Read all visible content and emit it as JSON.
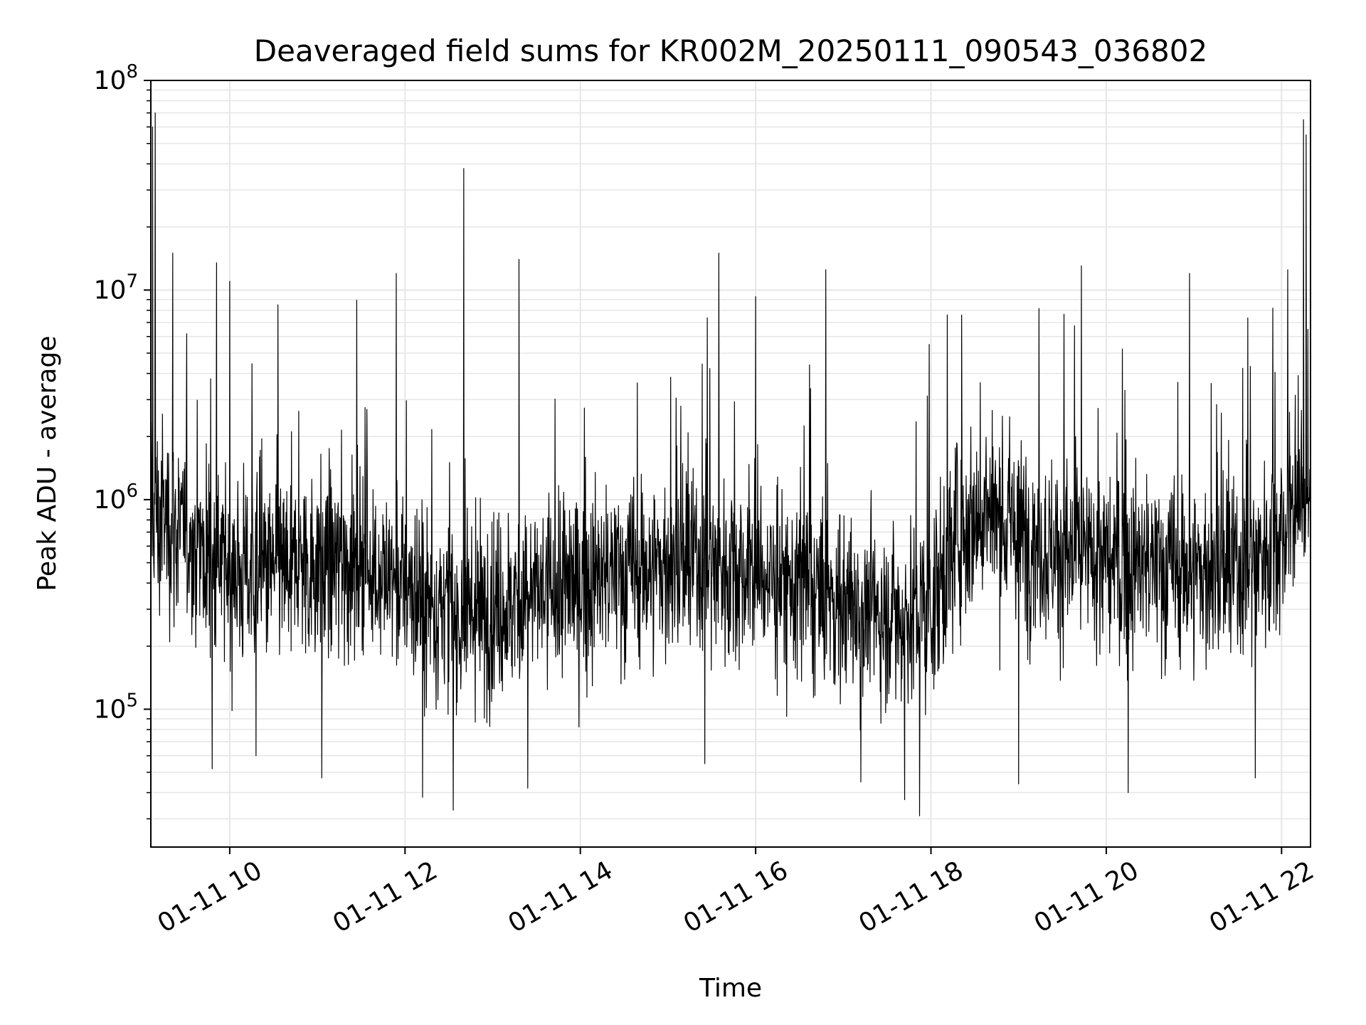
{
  "chart_data": {
    "type": "line",
    "title": "Deaveraged field sums for KR002M_20250111_090543_036802",
    "xlabel": "Time",
    "ylabel": "Peak ADU - average",
    "xlim_hours": [
      9.1,
      22.33
    ],
    "ylim": [
      22000,
      100000000
    ],
    "yscale": "log",
    "grid": true,
    "line_color": "#000000",
    "grid_color": "#e6e6e6",
    "x_ticks": [
      {
        "hour": 10,
        "label": "01-11 10"
      },
      {
        "hour": 12,
        "label": "01-11 12"
      },
      {
        "hour": 14,
        "label": "01-11 14"
      },
      {
        "hour": 16,
        "label": "01-11 16"
      },
      {
        "hour": 18,
        "label": "01-11 18"
      },
      {
        "hour": 20,
        "label": "01-11 20"
      },
      {
        "hour": 22,
        "label": "01-11 22"
      }
    ],
    "y_ticks": [
      {
        "value": 100000,
        "base": "10",
        "exp": "5"
      },
      {
        "value": 1000000,
        "base": "10",
        "exp": "6"
      },
      {
        "value": 10000000,
        "base": "10",
        "exp": "7"
      },
      {
        "value": 100000000,
        "base": "10",
        "exp": "8"
      }
    ],
    "series": [
      {
        "name": "Peak ADU - average",
        "baseline_profile": {
          "hours": [
            9.1,
            9.3,
            9.6,
            10.0,
            10.5,
            11.0,
            11.5,
            12.0,
            12.5,
            13.0,
            13.5,
            14.0,
            14.5,
            15.0,
            15.5,
            16.0,
            16.5,
            17.0,
            17.5,
            18.0,
            18.3,
            18.6,
            19.0,
            19.5,
            20.0,
            20.5,
            21.0,
            21.5,
            22.0,
            22.33
          ],
          "median": [
            900000,
            800000,
            600000,
            450000,
            450000,
            500000,
            500000,
            380000,
            280000,
            300000,
            350000,
            400000,
            450000,
            480000,
            500000,
            450000,
            380000,
            320000,
            280000,
            300000,
            700000,
            900000,
            700000,
            550000,
            500000,
            480000,
            450000,
            450000,
            700000,
            1200000
          ]
        },
        "highlights": [
          {
            "hour": 9.12,
            "value": 60000000
          },
          {
            "hour": 9.15,
            "value": 70000000
          },
          {
            "hour": 9.2,
            "value": 280000
          },
          {
            "hour": 9.35,
            "value": 15000000
          },
          {
            "hour": 9.8,
            "value": 52000
          },
          {
            "hour": 9.85,
            "value": 13500000
          },
          {
            "hour": 10.0,
            "value": 11000000
          },
          {
            "hour": 10.3,
            "value": 60000
          },
          {
            "hour": 10.55,
            "value": 8500000
          },
          {
            "hour": 11.05,
            "value": 47000
          },
          {
            "hour": 11.9,
            "value": 12000000
          },
          {
            "hour": 12.2,
            "value": 38000
          },
          {
            "hour": 12.55,
            "value": 33000
          },
          {
            "hour": 12.67,
            "value": 38000000
          },
          {
            "hour": 13.3,
            "value": 14000000
          },
          {
            "hour": 13.4,
            "value": 42000
          },
          {
            "hour": 15.42,
            "value": 55000
          },
          {
            "hour": 15.58,
            "value": 15000000
          },
          {
            "hour": 16.0,
            "value": 9300000
          },
          {
            "hour": 16.8,
            "value": 12500000
          },
          {
            "hour": 17.2,
            "value": 45000
          },
          {
            "hour": 17.7,
            "value": 37000
          },
          {
            "hour": 17.87,
            "value": 31000
          },
          {
            "hour": 17.98,
            "value": 5500000
          },
          {
            "hour": 18.35,
            "value": 7600000
          },
          {
            "hour": 19.0,
            "value": 44000
          },
          {
            "hour": 20.25,
            "value": 40000
          },
          {
            "hour": 20.95,
            "value": 12000000
          },
          {
            "hour": 21.7,
            "value": 47000
          },
          {
            "hour": 21.9,
            "value": 8200000
          },
          {
            "hour": 22.07,
            "value": 12500000
          },
          {
            "hour": 22.25,
            "value": 65000000
          },
          {
            "hour": 22.28,
            "value": 55000000
          },
          {
            "hour": 22.3,
            "value": 6500000
          }
        ]
      }
    ]
  }
}
